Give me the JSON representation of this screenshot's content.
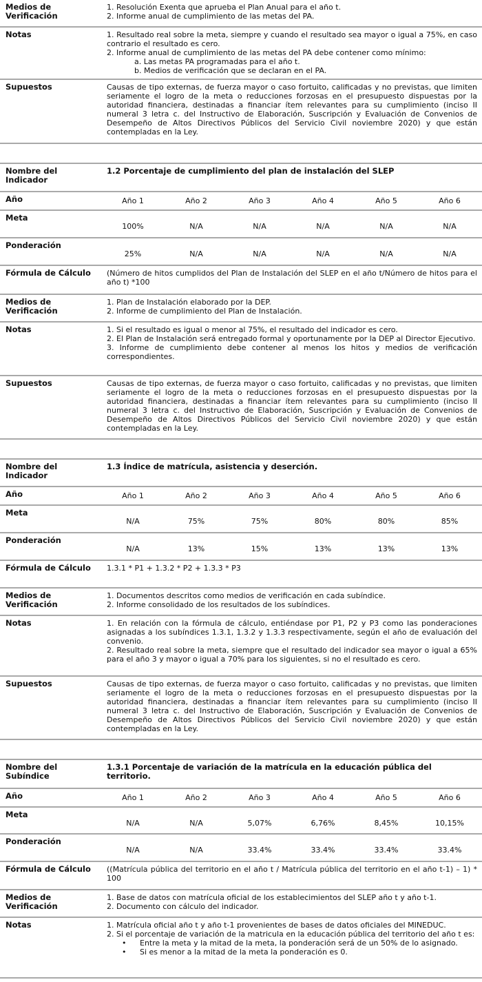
{
  "sections": [
    {
      "rows": [
        {
          "label": "Medios de Verificación",
          "type": "list",
          "h": 40,
          "items": [
            {
              "text": "1. Resolución Exenta que aprueba el Plan Anual para el año t."
            },
            {
              "text": "2. Informe anual de cumplimiento de las metas del PA."
            }
          ]
        },
        {
          "label": "Notas",
          "type": "list",
          "h": 76,
          "items": [
            {
              "text": "1. Resultado real sobre la meta, siempre y cuando el resultado sea mayor o igual a 75%, en caso contrario el resultado es cero."
            },
            {
              "text": "2. Informe anual de cumplimiento de las metas del PA debe contener como mínimo:"
            },
            {
              "text": "a. Las metas PA programadas para el año t.",
              "indent": 2
            },
            {
              "text": "b. Medios de verificación que se declaran en el PA.",
              "indent": 2
            }
          ]
        },
        {
          "label": "Supuestos",
          "type": "list",
          "h": 93,
          "items": [
            {
              "text": "Causas de tipo externas, de fuerza mayor o caso fortuito, calificadas y no previstas, que limiten seriamente el logro de la meta o reducciones forzosas en el presupuesto dispuestas por la autoridad financiera, destinadas a financiar ítem relevantes para su cumplimiento (inciso II numeral 3 letra c. del Instructivo de Elaboración, Suscripción y Evaluación de Convenios de Desempeño de Altos Directivos Públicos del Servicio Civil noviembre 2020) y que están contempladas en la Ley."
            }
          ]
        }
      ]
    },
    {
      "rows": [
        {
          "label": "Nombre del Indicador",
          "type": "title",
          "h": 41,
          "text": "1.2 Porcentaje de cumplimiento del plan de instalación del SLEP"
        },
        {
          "label": "Año",
          "type": "years",
          "h": 27,
          "values": [
            "Año 1",
            "Año 2",
            "Año 3",
            "Año 4",
            "Año 5",
            "Año 6"
          ]
        },
        {
          "label": "Meta",
          "type": "years",
          "h": 40,
          "values": [
            "100%",
            "N/A",
            "N/A",
            "N/A",
            "N/A",
            "N/A"
          ]
        },
        {
          "label": "Ponderación",
          "type": "years",
          "h": 40,
          "values": [
            "25%",
            "N/A",
            "N/A",
            "N/A",
            "N/A",
            "N/A"
          ]
        },
        {
          "label": "Fórmula de Cálculo",
          "type": "list",
          "h": 42,
          "items": [
            {
              "text": "(Número de hitos cumplidos del Plan de Instalación del SLEP en el año t/Número de hitos para el año t) *100"
            }
          ]
        },
        {
          "label": "Medios de Verificación",
          "type": "list",
          "h": 40,
          "items": [
            {
              "text": "1. Plan de Instalación elaborado por la DEP."
            },
            {
              "text": "2. Informe de cumplimiento del Plan de Instalación."
            }
          ]
        },
        {
          "label": "Notas",
          "type": "list",
          "h": 78,
          "items": [
            {
              "text": "1. Si el resultado es igual o menor al 75%, el resultado del indicador es cero."
            },
            {
              "text": "2. El Plan de Instalación será entregado formal y oportunamente por la DEP al Director Ejecutivo."
            },
            {
              "text": "3. Informe de cumplimiento debe contener al menos los hitos y medios de verificación correspondientes."
            }
          ]
        },
        {
          "label": "Supuestos",
          "type": "list",
          "h": 92,
          "items": [
            {
              "text": "Causas de tipo externas, de fuerza mayor o caso fortuito, calificadas y no previstas, que limiten seriamente el logro de la meta o reducciones forzosas en el presupuesto dispuestas por la autoridad financiera, destinadas a financiar ítem relevantes para su cumplimiento (inciso II numeral 3 letra c. del Instructivo de Elaboración, Suscripción y Evaluación de Convenios de Desempeño de Altos Directivos Públicos del Servicio Civil noviembre 2020) y que están contempladas en la Ley."
            }
          ]
        }
      ]
    },
    {
      "rows": [
        {
          "label": "Nombre del Indicador",
          "type": "title",
          "h": 40,
          "text": "1.3 Índice de matrícula, asistencia y deserción."
        },
        {
          "label": "Año",
          "type": "years",
          "h": 27,
          "values": [
            "Año 1",
            "Año 2",
            "Año 3",
            "Año 4",
            "Año 5",
            "Año 6"
          ]
        },
        {
          "label": "Meta",
          "type": "years",
          "h": 40,
          "values": [
            "N/A",
            "75%",
            "75%",
            "80%",
            "80%",
            "85%"
          ]
        },
        {
          "label": "Ponderación",
          "type": "years",
          "h": 40,
          "values": [
            "N/A",
            "13%",
            "15%",
            "13%",
            "13%",
            "13%"
          ]
        },
        {
          "label": "Fórmula de Cálculo",
          "type": "list",
          "h": 40,
          "items": [
            {
              "text": "1.3.1 * P1 + 1.3.2 * P2 + 1.3.3 * P3"
            }
          ]
        },
        {
          "label": "Medios de Verificación",
          "type": "list",
          "h": 40,
          "items": [
            {
              "text": "1. Documentos descritos como medios de verificación en cada subíndice."
            },
            {
              "text": "2. Informe consolidado de los resultados de los subíndices."
            }
          ]
        },
        {
          "label": "Notas",
          "type": "list",
          "h": 88,
          "items": [
            {
              "text": "1. En relación con la fórmula de cálculo, entiéndase por P1, P2 y P3 como las ponderaciones asignadas a los subíndices 1.3.1, 1.3.2 y 1.3.3 respectivamente, según el año de evaluación del convenio."
            },
            {
              "text": "2. Resultado real sobre la meta, siempre que el resultado del indicador sea mayor o igual a 65% para el año 3 y mayor o igual a 70% para los siguientes, si no el resultado es cero."
            }
          ]
        },
        {
          "label": "Supuestos",
          "type": "list",
          "h": 92,
          "items": [
            {
              "text": "Causas de tipo externas, de fuerza mayor o caso fortuito, calificadas y no previstas, que limiten seriamente el logro de la meta o reducciones forzosas en el presupuesto dispuestas por la autoridad financiera, destinadas a financiar ítem relevantes para su cumplimiento (inciso II numeral 3 letra c. del Instructivo de Elaboración, Suscripción y Evaluación de Convenios de Desempeño de Altos Directivos Públicos del Servicio Civil noviembre 2020) y que están contempladas en la Ley."
            }
          ]
        }
      ]
    },
    {
      "rows": [
        {
          "label": "Nombre del Subíndice",
          "type": "title",
          "h": 42,
          "text": "1.3.1 Porcentaje de variación de la matrícula en la educación pública del territorio."
        },
        {
          "label": "Año",
          "type": "years",
          "h": 27,
          "values": [
            "Año 1",
            "Año 2",
            "Año 3",
            "Año 4",
            "Año 5",
            "Año 6"
          ]
        },
        {
          "label": "Meta",
          "type": "years",
          "h": 39,
          "values": [
            "N/A",
            "N/A",
            "5,07%",
            "6,76%",
            "8,45%",
            "10,15%"
          ]
        },
        {
          "label": "Ponderación",
          "type": "years",
          "h": 40,
          "values": [
            "N/A",
            "N/A",
            "33.4%",
            "33.4%",
            "33.4%",
            "33.4%"
          ]
        },
        {
          "label": "Fórmula de Cálculo",
          "type": "list",
          "h": 41,
          "items": [
            {
              "text": "((Matrícula pública del territorio en el año t / Matrícula pública del territorio en el año t-1) – 1) * 100"
            }
          ]
        },
        {
          "label": "Medios de Verificación",
          "type": "list",
          "h": 40,
          "items": [
            {
              "text": "1. Base de datos con matrícula oficial de los establecimientos del SLEP año t y año t-1."
            },
            {
              "text": "2. Documento con cálculo del indicador."
            }
          ]
        },
        {
          "label": "Notas",
          "type": "list",
          "h": 88,
          "items": [
            {
              "text": "1. Matrícula oficial año t y año t-1 provenientes de bases de datos oficiales del MINEDUC."
            },
            {
              "text": "2. Si el porcentaje de variación de la matricula en la educación pública del territorio del año t es:"
            },
            {
              "text": "Entre la meta y la mitad de la meta, la ponderación será de un 50% de lo asignado.",
              "bullet": true
            },
            {
              "text": "Si es menor a la mitad de la meta la ponderación es 0.",
              "bullet": true
            }
          ]
        }
      ]
    }
  ]
}
